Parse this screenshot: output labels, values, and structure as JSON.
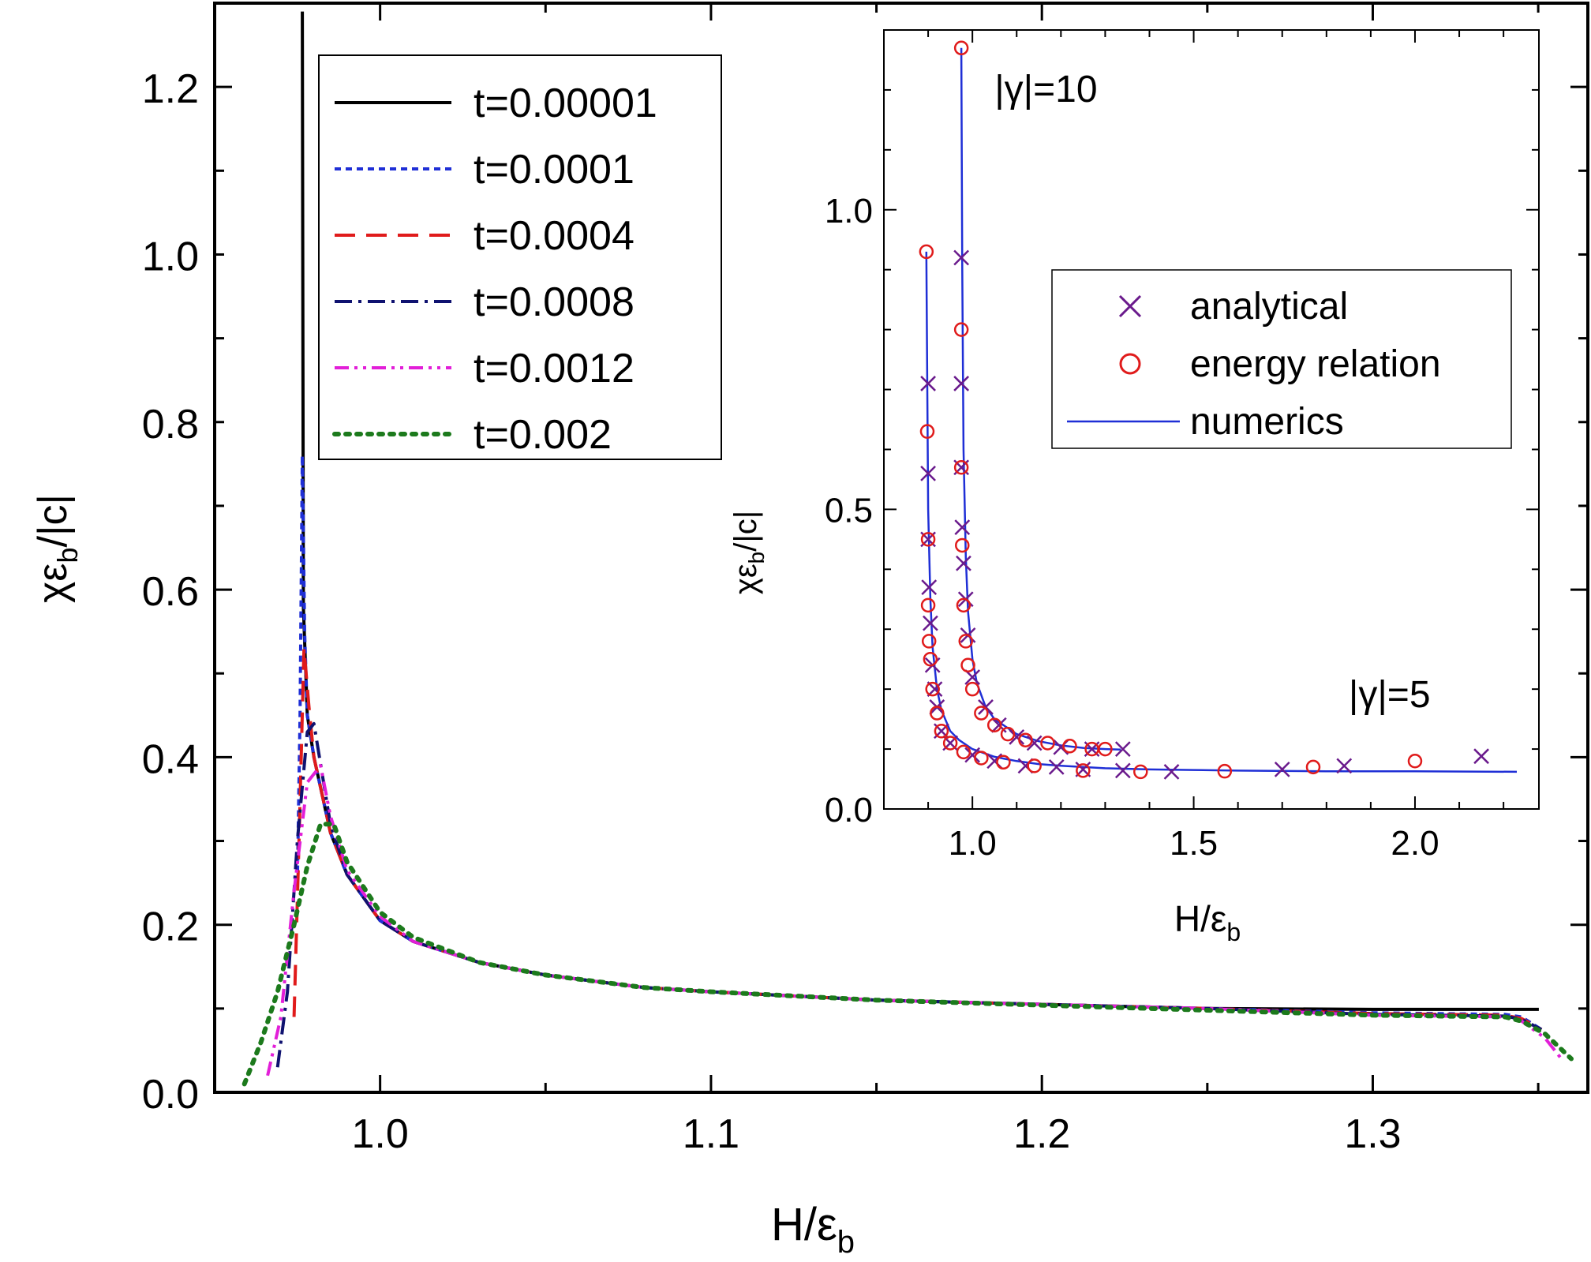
{
  "chart_data": [
    {
      "type": "line",
      "title": "",
      "xlabel": "H/ε",
      "xlabel_sub": "b",
      "ylabel_main": "χε",
      "ylabel_sub": "b",
      "ylabel_tail": "/|c|",
      "xlim": [
        0.95,
        1.365
      ],
      "ylim": [
        0.0,
        1.3
      ],
      "xticks": [
        1.0,
        1.1,
        1.2,
        1.3
      ],
      "xtick_labels": [
        "1.0",
        "1.1",
        "1.2",
        "1.3"
      ],
      "yticks": [
        0.0,
        0.2,
        0.4,
        0.6,
        0.8,
        1.0,
        1.2
      ],
      "ytick_labels": [
        "0.0",
        "0.2",
        "0.4",
        "0.6",
        "0.8",
        "1.0",
        "1.2"
      ],
      "legend_position": "top-left",
      "series": [
        {
          "name": "t=0.00001",
          "color": "#000000",
          "dash": "solid",
          "x": [
            0.9765,
            0.9768,
            0.978,
            0.98,
            0.985,
            0.99,
            1.0,
            1.01,
            1.03,
            1.05,
            1.08,
            1.1,
            1.15,
            1.2,
            1.25,
            1.3,
            1.3502
          ],
          "y": [
            1.29,
            0.58,
            0.45,
            0.4,
            0.31,
            0.26,
            0.205,
            0.18,
            0.155,
            0.14,
            0.125,
            0.12,
            0.11,
            0.105,
            0.1,
            0.099,
            0.099
          ]
        },
        {
          "name": "t=0.0001",
          "color": "#1f2fd6",
          "dash": "short-dash",
          "x": [
            0.975,
            0.9758,
            0.9765,
            0.9772,
            0.978,
            0.98,
            0.985,
            0.99,
            1.0,
            1.01,
            1.03,
            1.05,
            1.08,
            1.1,
            1.15,
            1.2,
            1.25,
            1.3,
            1.34,
            1.345,
            1.351
          ],
          "y": [
            0.25,
            0.45,
            0.76,
            0.55,
            0.45,
            0.4,
            0.31,
            0.26,
            0.205,
            0.18,
            0.155,
            0.14,
            0.125,
            0.12,
            0.11,
            0.105,
            0.1,
            0.095,
            0.093,
            0.09,
            0.075
          ]
        },
        {
          "name": "t=0.0004",
          "color": "#e01b1b",
          "dash": "long-dash",
          "x": [
            0.974,
            0.9755,
            0.977,
            0.9785,
            0.98,
            0.985,
            0.99,
            1.0,
            1.01,
            1.03,
            1.05,
            1.08,
            1.1,
            1.15,
            1.2,
            1.25,
            1.3,
            1.34,
            1.345,
            1.351
          ],
          "y": [
            0.09,
            0.3,
            0.53,
            0.46,
            0.4,
            0.31,
            0.26,
            0.205,
            0.18,
            0.155,
            0.14,
            0.125,
            0.12,
            0.11,
            0.105,
            0.1,
            0.094,
            0.092,
            0.088,
            0.075
          ]
        },
        {
          "name": "t=0.0008",
          "color": "#0f1270",
          "dash": "dash-dot",
          "x": [
            0.969,
            0.972,
            0.975,
            0.978,
            0.98,
            0.985,
            0.99,
            1.0,
            1.01,
            1.03,
            1.05,
            1.08,
            1.1,
            1.15,
            1.2,
            1.25,
            1.3,
            1.34,
            1.345,
            1.351
          ],
          "y": [
            0.03,
            0.12,
            0.3,
            0.43,
            0.44,
            0.32,
            0.26,
            0.205,
            0.18,
            0.155,
            0.14,
            0.125,
            0.12,
            0.11,
            0.105,
            0.1,
            0.093,
            0.091,
            0.087,
            0.075
          ]
        },
        {
          "name": "t=0.0012",
          "color": "#e21fd8",
          "dash": "dash-dot-dot",
          "x": [
            0.966,
            0.97,
            0.974,
            0.978,
            0.982,
            0.985,
            0.99,
            1.0,
            1.01,
            1.03,
            1.05,
            1.08,
            1.1,
            1.15,
            1.2,
            1.25,
            1.3,
            1.34,
            1.345,
            1.352,
            1.357
          ],
          "y": [
            0.02,
            0.09,
            0.24,
            0.37,
            0.39,
            0.33,
            0.265,
            0.21,
            0.18,
            0.155,
            0.14,
            0.125,
            0.12,
            0.11,
            0.105,
            0.1,
            0.092,
            0.09,
            0.085,
            0.065,
            0.04
          ]
        },
        {
          "name": "t=0.002",
          "color": "#1c7a1c",
          "dash": "dotted",
          "x": [
            0.959,
            0.964,
            0.969,
            0.974,
            0.978,
            0.982,
            0.986,
            0.99,
            1.0,
            1.01,
            1.03,
            1.05,
            1.08,
            1.1,
            1.15,
            1.2,
            1.25,
            1.3,
            1.34,
            1.345,
            1.352,
            1.36
          ],
          "y": [
            0.01,
            0.06,
            0.12,
            0.2,
            0.27,
            0.32,
            0.32,
            0.275,
            0.215,
            0.185,
            0.155,
            0.14,
            0.125,
            0.12,
            0.11,
            0.104,
            0.098,
            0.092,
            0.09,
            0.085,
            0.07,
            0.04
          ]
        }
      ]
    },
    {
      "type": "line",
      "title": "",
      "xlabel": "H/ε",
      "xlabel_sub": "b",
      "ylabel_main": "χε",
      "ylabel_sub": "b",
      "ylabel_tail": "/|c|",
      "xlim": [
        0.8,
        2.28
      ],
      "ylim": [
        0.0,
        1.3
      ],
      "xticks": [
        1.0,
        1.5,
        2.0
      ],
      "xtick_labels": [
        "1.0",
        "1.5",
        "2.0"
      ],
      "yticks": [
        0.0,
        0.5,
        1.0
      ],
      "ytick_labels": [
        "0.0",
        "0.5",
        "1.0"
      ],
      "legend_position": "middle-right",
      "annotations": [
        {
          "text": "|γ|=10",
          "x": 1.05,
          "y": 1.18
        },
        {
          "text": "|γ|=5",
          "x": 1.85,
          "y": 0.17
        }
      ],
      "series": [
        {
          "name": "numerics",
          "color": "#1f2fd6",
          "marker": "line",
          "curves": [
            {
              "x": [
                0.896,
                0.898,
                0.9,
                0.905,
                0.91,
                0.92,
                0.93,
                0.95,
                0.97,
                1.0,
                1.05,
                1.1,
                1.15,
                1.2,
                1.3,
                1.4,
                1.5,
                1.6,
                1.8,
                2.0,
                2.23
              ],
              "y": [
                0.93,
                0.7,
                0.5,
                0.35,
                0.27,
                0.2,
                0.165,
                0.13,
                0.115,
                0.1,
                0.087,
                0.08,
                0.075,
                0.072,
                0.068,
                0.066,
                0.065,
                0.064,
                0.063,
                0.063,
                0.062
              ]
            },
            {
              "x": [
                0.975,
                0.977,
                0.98,
                0.985,
                0.99,
                1.0,
                1.01,
                1.03,
                1.05,
                1.1,
                1.15,
                1.2,
                1.25,
                1.3,
                1.335
              ],
              "y": [
                1.27,
                0.9,
                0.6,
                0.42,
                0.33,
                0.25,
                0.21,
                0.17,
                0.15,
                0.125,
                0.113,
                0.106,
                0.102,
                0.1,
                0.099
              ]
            }
          ]
        },
        {
          "name": "analytical",
          "color": "#6a1a8c",
          "marker": "x",
          "x": [
            0.9,
            0.9,
            0.9,
            0.902,
            0.905,
            0.91,
            0.915,
            0.92,
            0.93,
            0.95,
            1.0,
            1.05,
            1.12,
            1.19,
            1.25,
            1.34,
            1.45,
            1.7,
            1.84,
            2.15,
            0.975,
            0.975,
            0.975,
            0.977,
            0.98,
            0.985,
            0.99,
            1.0,
            1.03,
            1.06,
            1.1,
            1.14,
            1.2,
            1.27,
            1.34
          ],
          "y": [
            0.71,
            0.56,
            0.45,
            0.37,
            0.31,
            0.24,
            0.2,
            0.17,
            0.13,
            0.11,
            0.09,
            0.08,
            0.072,
            0.07,
            0.066,
            0.064,
            0.062,
            0.066,
            0.072,
            0.088,
            0.92,
            0.71,
            0.57,
            0.47,
            0.41,
            0.35,
            0.29,
            0.22,
            0.17,
            0.14,
            0.12,
            0.11,
            0.103,
            0.1,
            0.1
          ]
        },
        {
          "name": "energy relation",
          "color": "#e01b1b",
          "marker": "circle",
          "x": [
            0.896,
            0.898,
            0.9,
            0.9,
            0.902,
            0.905,
            0.91,
            0.92,
            0.93,
            0.95,
            0.98,
            1.02,
            1.07,
            1.14,
            1.25,
            1.38,
            1.57,
            1.77,
            2.0,
            0.975,
            0.975,
            0.975,
            0.977,
            0.98,
            0.985,
            0.99,
            1.0,
            1.02,
            1.05,
            1.08,
            1.12,
            1.17,
            1.22,
            1.27,
            1.3
          ],
          "y": [
            0.93,
            0.63,
            0.45,
            0.34,
            0.28,
            0.25,
            0.2,
            0.16,
            0.13,
            0.11,
            0.095,
            0.085,
            0.078,
            0.072,
            0.064,
            0.062,
            0.063,
            0.07,
            0.08,
            1.27,
            0.8,
            0.57,
            0.44,
            0.34,
            0.28,
            0.24,
            0.2,
            0.16,
            0.14,
            0.125,
            0.115,
            0.11,
            0.105,
            0.1,
            0.1
          ]
        }
      ]
    }
  ]
}
